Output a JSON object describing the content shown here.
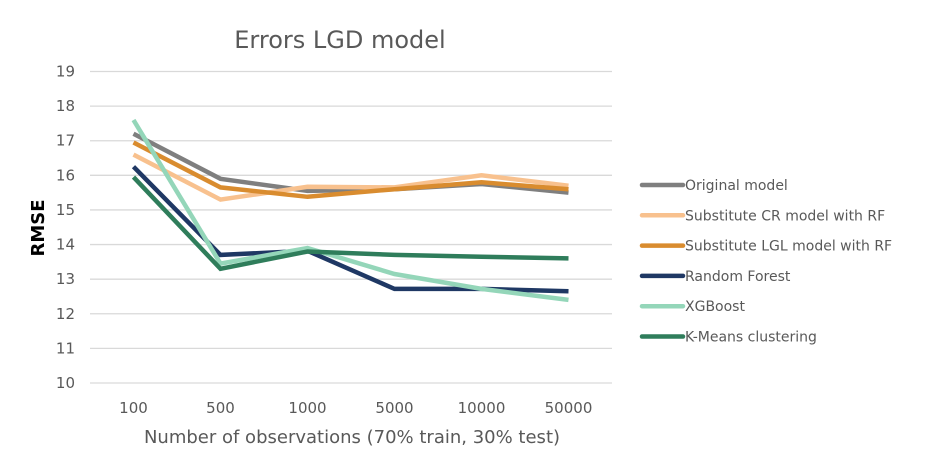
{
  "chart_data": {
    "type": "line",
    "title": "Errors LGD model",
    "xlabel": "Number of observations (70% train, 30% test)",
    "ylabel": "RMSE",
    "categories": [
      "100",
      "500",
      "1000",
      "5000",
      "10000",
      "50000"
    ],
    "ylim": [
      10,
      19
    ],
    "yticks": [
      "10",
      "11",
      "12",
      "13",
      "14",
      "15",
      "16",
      "17",
      "18",
      "19"
    ],
    "grid": true,
    "legend_position": "right",
    "series": [
      {
        "name": "Original model",
        "color": "#7f7f7f",
        "values": [
          17.2,
          15.9,
          15.55,
          15.6,
          15.75,
          15.5
        ]
      },
      {
        "name": "Substitute CR model with RF",
        "color": "#f8c18e",
        "values": [
          16.6,
          15.3,
          15.67,
          15.65,
          16.0,
          15.7
        ]
      },
      {
        "name": "Substitute LGL model with RF",
        "color": "#d98c2f",
        "values": [
          16.95,
          15.65,
          15.38,
          15.6,
          15.8,
          15.6
        ]
      },
      {
        "name": "Random Forest",
        "color": "#1f3864",
        "values": [
          16.25,
          13.7,
          13.82,
          12.72,
          12.72,
          12.65
        ]
      },
      {
        "name": "XGBoost",
        "color": "#94d6b9",
        "values": [
          17.6,
          13.45,
          13.9,
          13.15,
          12.72,
          12.4
        ]
      },
      {
        "name": "K-Means clustering",
        "color": "#2f7d5b",
        "values": [
          15.95,
          13.3,
          13.8,
          13.7,
          13.65,
          13.6
        ]
      }
    ]
  }
}
